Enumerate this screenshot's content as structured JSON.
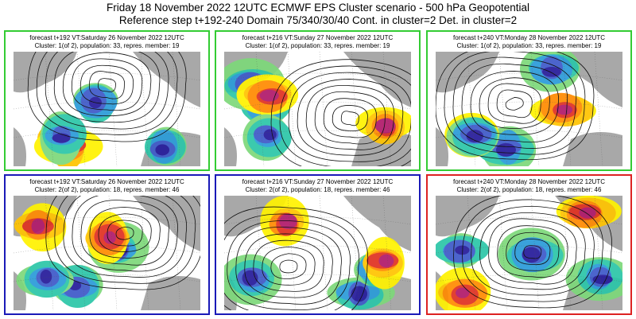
{
  "header": {
    "line1": "Friday 18 November 2022 12UTC ECMWF EPS Cluster scenario - 500 hPa Geopotential",
    "line2": "Reference step t+192-240 Domain 75/340/30/40 Cont. in cluster=2 Det. in cluster=2"
  },
  "colors": {
    "cluster1_border": "#33cc33",
    "cluster2_border": "#1a1ab8",
    "deterministic_border": "#dd2222",
    "positive_anomaly": "#e03020",
    "negative_anomaly": "#2a9bd8",
    "land": "#a8a8a8"
  },
  "panels": [
    {
      "forecast": "forecast t+192 VT:Saturday 26 November 2022 12UTC",
      "cluster": "Cluster: 1(of 2), population: 33, repres. member: 19",
      "border": "green",
      "cluster_id": 1,
      "step": 192
    },
    {
      "forecast": "forecast t+216 VT:Sunday 27 November 2022 12UTC",
      "cluster": "Cluster: 1(of 2), population: 33, repres. member: 19",
      "border": "green",
      "cluster_id": 1,
      "step": 216
    },
    {
      "forecast": "forecast t+240 VT:Monday 28 November 2022 12UTC",
      "cluster": "Cluster: 1(of 2), population: 33, repres. member: 19",
      "border": "green",
      "cluster_id": 1,
      "step": 240
    },
    {
      "forecast": "forecast t+192 VT:Saturday 26 November 2022 12UTC",
      "cluster": "Cluster: 2(of 2), population: 18, repres. member: 46",
      "border": "blue",
      "cluster_id": 2,
      "step": 192
    },
    {
      "forecast": "forecast t+216 VT:Sunday 27 November 2022 12UTC",
      "cluster": "Cluster: 2(of 2), population: 18, repres. member: 46",
      "border": "blue",
      "cluster_id": 2,
      "step": 216
    },
    {
      "forecast": "forecast t+240 VT:Monday 28 November 2022 12UTC",
      "cluster": "Cluster: 2(of 2), population: 18, repres. member: 46",
      "border": "red",
      "cluster_id": 2,
      "step": 240
    }
  ]
}
